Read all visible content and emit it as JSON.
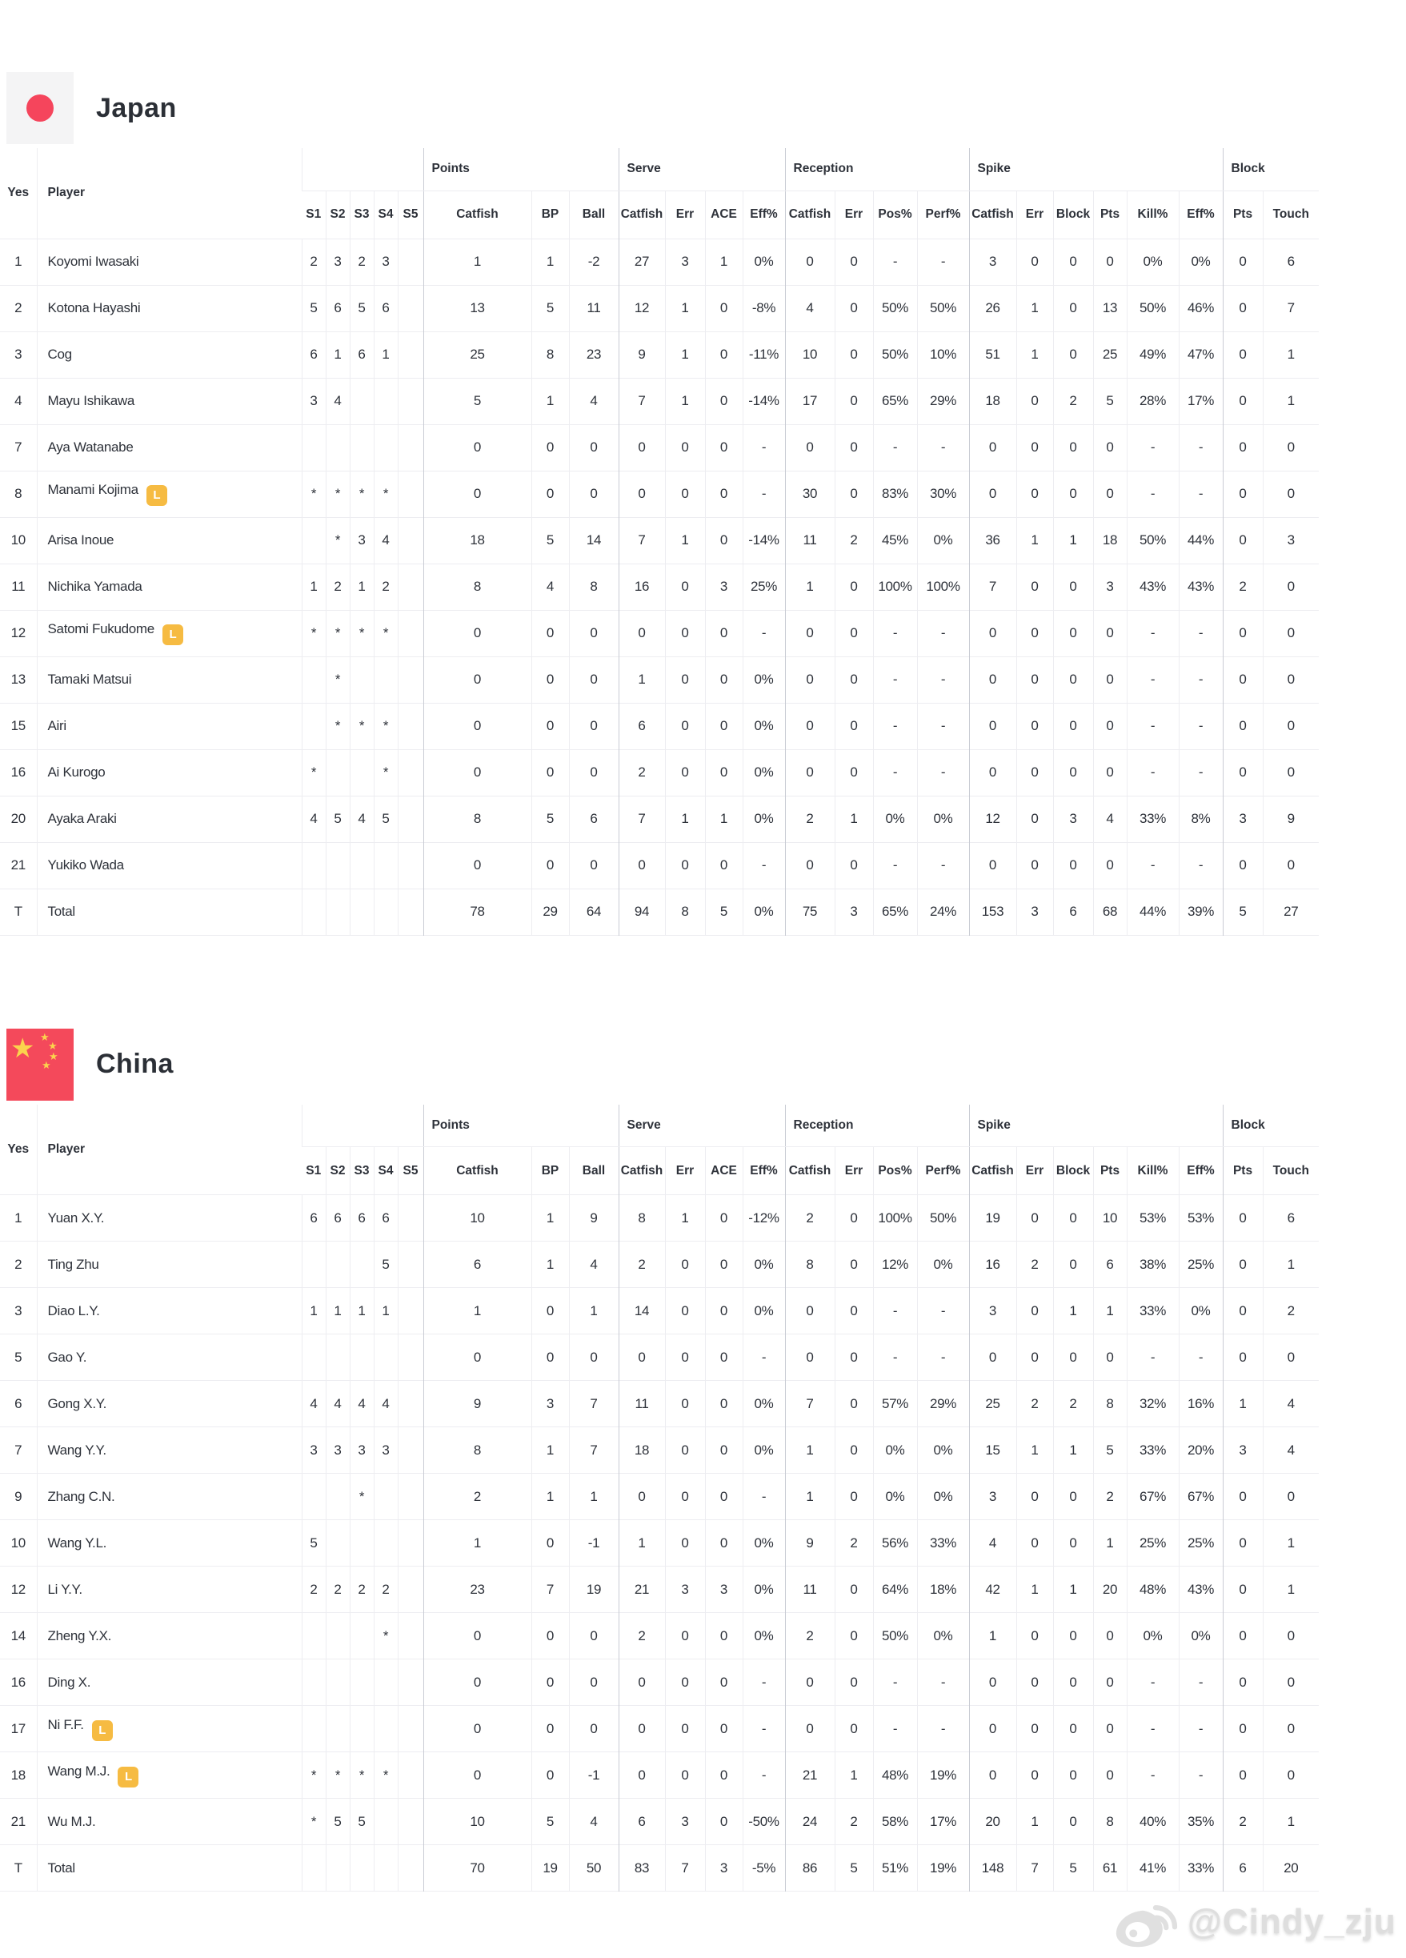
{
  "colors": {
    "libero_badge": "#F6BB42",
    "japan_flag_circle": "#F5455C",
    "china_flag_bg": "#F4495B",
    "china_flag_star": "#FBD34D",
    "border_light": "#EDEDF1",
    "border_group": "#C9CCD4"
  },
  "badge": {
    "label": "L"
  },
  "columns": {
    "yes": "Yes",
    "player": "Player",
    "sets": [
      "S1",
      "S2",
      "S3",
      "S4",
      "S5"
    ],
    "groups": [
      {
        "label": "Points",
        "cols": [
          "Catfish",
          "BP",
          "Ball"
        ]
      },
      {
        "label": "Serve",
        "cols": [
          "Catfish",
          "Err",
          "ACE",
          "Eff%"
        ]
      },
      {
        "label": "Reception",
        "cols": [
          "Catfish",
          "Err",
          "Pos%",
          "Perf%"
        ]
      },
      {
        "label": "Spike",
        "cols": [
          "Catfish",
          "Err",
          "Block",
          "Pts",
          "Kill%",
          "Eff%"
        ]
      },
      {
        "label": "Block",
        "cols": [
          "Pts",
          "Touch"
        ]
      }
    ]
  },
  "teams": [
    {
      "name": "Japan",
      "flag": "japan",
      "rows": [
        {
          "no": "1",
          "player": "Koyomi Iwasaki",
          "libero": false,
          "sets": [
            "2",
            "3",
            "2",
            "3",
            ""
          ],
          "stats": [
            "1",
            "1",
            "-2",
            "27",
            "3",
            "1",
            "0%",
            "0",
            "0",
            "-",
            "-",
            "3",
            "0",
            "0",
            "0",
            "0%",
            "0%",
            "0",
            "6"
          ]
        },
        {
          "no": "2",
          "player": "Kotona Hayashi",
          "libero": false,
          "sets": [
            "5",
            "6",
            "5",
            "6",
            ""
          ],
          "stats": [
            "13",
            "5",
            "11",
            "12",
            "1",
            "0",
            "-8%",
            "4",
            "0",
            "50%",
            "50%",
            "26",
            "1",
            "0",
            "13",
            "50%",
            "46%",
            "0",
            "7"
          ]
        },
        {
          "no": "3",
          "player": "Cog",
          "libero": false,
          "sets": [
            "6",
            "1",
            "6",
            "1",
            ""
          ],
          "stats": [
            "25",
            "8",
            "23",
            "9",
            "1",
            "0",
            "-11%",
            "10",
            "0",
            "50%",
            "10%",
            "51",
            "1",
            "0",
            "25",
            "49%",
            "47%",
            "0",
            "1"
          ]
        },
        {
          "no": "4",
          "player": "Mayu Ishikawa",
          "libero": false,
          "sets": [
            "3",
            "4",
            "",
            "",
            ""
          ],
          "stats": [
            "5",
            "1",
            "4",
            "7",
            "1",
            "0",
            "-14%",
            "17",
            "0",
            "65%",
            "29%",
            "18",
            "0",
            "2",
            "5",
            "28%",
            "17%",
            "0",
            "1"
          ]
        },
        {
          "no": "7",
          "player": "Aya Watanabe",
          "libero": false,
          "sets": [
            "",
            "",
            "",
            "",
            ""
          ],
          "stats": [
            "0",
            "0",
            "0",
            "0",
            "0",
            "0",
            "-",
            "0",
            "0",
            "-",
            "-",
            "0",
            "0",
            "0",
            "0",
            "-",
            "-",
            "0",
            "0"
          ]
        },
        {
          "no": "8",
          "player": "Manami Kojima",
          "libero": true,
          "sets": [
            "*",
            "*",
            "*",
            "*",
            ""
          ],
          "stats": [
            "0",
            "0",
            "0",
            "0",
            "0",
            "0",
            "-",
            "30",
            "0",
            "83%",
            "30%",
            "0",
            "0",
            "0",
            "0",
            "-",
            "-",
            "0",
            "0"
          ]
        },
        {
          "no": "10",
          "player": "Arisa Inoue",
          "libero": false,
          "sets": [
            "",
            "*",
            "3",
            "4",
            ""
          ],
          "stats": [
            "18",
            "5",
            "14",
            "7",
            "1",
            "0",
            "-14%",
            "11",
            "2",
            "45%",
            "0%",
            "36",
            "1",
            "1",
            "18",
            "50%",
            "44%",
            "0",
            "3"
          ]
        },
        {
          "no": "11",
          "player": "Nichika Yamada",
          "libero": false,
          "sets": [
            "1",
            "2",
            "1",
            "2",
            ""
          ],
          "stats": [
            "8",
            "4",
            "8",
            "16",
            "0",
            "3",
            "25%",
            "1",
            "0",
            "100%",
            "100%",
            "7",
            "0",
            "0",
            "3",
            "43%",
            "43%",
            "2",
            "0"
          ]
        },
        {
          "no": "12",
          "player": "Satomi Fukudome",
          "libero": true,
          "sets": [
            "*",
            "*",
            "*",
            "*",
            ""
          ],
          "stats": [
            "0",
            "0",
            "0",
            "0",
            "0",
            "0",
            "-",
            "0",
            "0",
            "-",
            "-",
            "0",
            "0",
            "0",
            "0",
            "-",
            "-",
            "0",
            "0"
          ]
        },
        {
          "no": "13",
          "player": "Tamaki Matsui",
          "libero": false,
          "sets": [
            "",
            "*",
            "",
            "",
            ""
          ],
          "stats": [
            "0",
            "0",
            "0",
            "1",
            "0",
            "0",
            "0%",
            "0",
            "0",
            "-",
            "-",
            "0",
            "0",
            "0",
            "0",
            "-",
            "-",
            "0",
            "0"
          ]
        },
        {
          "no": "15",
          "player": "Airi",
          "libero": false,
          "sets": [
            "",
            "*",
            "*",
            "*",
            ""
          ],
          "stats": [
            "0",
            "0",
            "0",
            "6",
            "0",
            "0",
            "0%",
            "0",
            "0",
            "-",
            "-",
            "0",
            "0",
            "0",
            "0",
            "-",
            "-",
            "0",
            "0"
          ]
        },
        {
          "no": "16",
          "player": "Ai Kurogo",
          "libero": false,
          "sets": [
            "*",
            "",
            "",
            "*",
            ""
          ],
          "stats": [
            "0",
            "0",
            "0",
            "2",
            "0",
            "0",
            "0%",
            "0",
            "0",
            "-",
            "-",
            "0",
            "0",
            "0",
            "0",
            "-",
            "-",
            "0",
            "0"
          ]
        },
        {
          "no": "20",
          "player": "Ayaka Araki",
          "libero": false,
          "sets": [
            "4",
            "5",
            "4",
            "5",
            ""
          ],
          "stats": [
            "8",
            "5",
            "6",
            "7",
            "1",
            "1",
            "0%",
            "2",
            "1",
            "0%",
            "0%",
            "12",
            "0",
            "3",
            "4",
            "33%",
            "8%",
            "3",
            "9"
          ]
        },
        {
          "no": "21",
          "player": "Yukiko Wada",
          "libero": false,
          "sets": [
            "",
            "",
            "",
            "",
            ""
          ],
          "stats": [
            "0",
            "0",
            "0",
            "0",
            "0",
            "0",
            "-",
            "0",
            "0",
            "-",
            "-",
            "0",
            "0",
            "0",
            "0",
            "-",
            "-",
            "0",
            "0"
          ]
        }
      ],
      "total": {
        "no": "T",
        "player": "Total",
        "sets": [
          "",
          "",
          "",
          "",
          ""
        ],
        "stats": [
          "78",
          "29",
          "64",
          "94",
          "8",
          "5",
          "0%",
          "75",
          "3",
          "65%",
          "24%",
          "153",
          "3",
          "6",
          "68",
          "44%",
          "39%",
          "5",
          "27"
        ]
      }
    },
    {
      "name": "China",
      "flag": "china",
      "rows": [
        {
          "no": "1",
          "player": "Yuan X.Y.",
          "libero": false,
          "sets": [
            "6",
            "6",
            "6",
            "6",
            ""
          ],
          "stats": [
            "10",
            "1",
            "9",
            "8",
            "1",
            "0",
            "-12%",
            "2",
            "0",
            "100%",
            "50%",
            "19",
            "0",
            "0",
            "10",
            "53%",
            "53%",
            "0",
            "6"
          ]
        },
        {
          "no": "2",
          "player": "Ting Zhu",
          "libero": false,
          "sets": [
            "",
            "",
            "",
            "5",
            ""
          ],
          "stats": [
            "6",
            "1",
            "4",
            "2",
            "0",
            "0",
            "0%",
            "8",
            "0",
            "12%",
            "0%",
            "16",
            "2",
            "0",
            "6",
            "38%",
            "25%",
            "0",
            "1"
          ]
        },
        {
          "no": "3",
          "player": "Diao L.Y.",
          "libero": false,
          "sets": [
            "1",
            "1",
            "1",
            "1",
            ""
          ],
          "stats": [
            "1",
            "0",
            "1",
            "14",
            "0",
            "0",
            "0%",
            "0",
            "0",
            "-",
            "-",
            "3",
            "0",
            "1",
            "1",
            "33%",
            "0%",
            "0",
            "2"
          ]
        },
        {
          "no": "5",
          "player": "Gao Y.",
          "libero": false,
          "sets": [
            "",
            "",
            "",
            "",
            ""
          ],
          "stats": [
            "0",
            "0",
            "0",
            "0",
            "0",
            "0",
            "-",
            "0",
            "0",
            "-",
            "-",
            "0",
            "0",
            "0",
            "0",
            "-",
            "-",
            "0",
            "0"
          ]
        },
        {
          "no": "6",
          "player": "Gong X.Y.",
          "libero": false,
          "sets": [
            "4",
            "4",
            "4",
            "4",
            ""
          ],
          "stats": [
            "9",
            "3",
            "7",
            "11",
            "0",
            "0",
            "0%",
            "7",
            "0",
            "57%",
            "29%",
            "25",
            "2",
            "2",
            "8",
            "32%",
            "16%",
            "1",
            "4"
          ]
        },
        {
          "no": "7",
          "player": "Wang Y.Y.",
          "libero": false,
          "sets": [
            "3",
            "3",
            "3",
            "3",
            ""
          ],
          "stats": [
            "8",
            "1",
            "7",
            "18",
            "0",
            "0",
            "0%",
            "1",
            "0",
            "0%",
            "0%",
            "15",
            "1",
            "1",
            "5",
            "33%",
            "20%",
            "3",
            "4"
          ]
        },
        {
          "no": "9",
          "player": "Zhang C.N.",
          "libero": false,
          "sets": [
            "",
            "",
            "*",
            "",
            ""
          ],
          "stats": [
            "2",
            "1",
            "1",
            "0",
            "0",
            "0",
            "-",
            "1",
            "0",
            "0%",
            "0%",
            "3",
            "0",
            "0",
            "2",
            "67%",
            "67%",
            "0",
            "0"
          ]
        },
        {
          "no": "10",
          "player": "Wang Y.L.",
          "libero": false,
          "sets": [
            "5",
            "",
            "",
            "",
            ""
          ],
          "stats": [
            "1",
            "0",
            "-1",
            "1",
            "0",
            "0",
            "0%",
            "9",
            "2",
            "56%",
            "33%",
            "4",
            "0",
            "0",
            "1",
            "25%",
            "25%",
            "0",
            "1"
          ]
        },
        {
          "no": "12",
          "player": "Li Y.Y.",
          "libero": false,
          "sets": [
            "2",
            "2",
            "2",
            "2",
            ""
          ],
          "stats": [
            "23",
            "7",
            "19",
            "21",
            "3",
            "3",
            "0%",
            "11",
            "0",
            "64%",
            "18%",
            "42",
            "1",
            "1",
            "20",
            "48%",
            "43%",
            "0",
            "1"
          ]
        },
        {
          "no": "14",
          "player": "Zheng Y.X.",
          "libero": false,
          "sets": [
            "",
            "",
            "",
            "*",
            ""
          ],
          "stats": [
            "0",
            "0",
            "0",
            "2",
            "0",
            "0",
            "0%",
            "2",
            "0",
            "50%",
            "0%",
            "1",
            "0",
            "0",
            "0",
            "0%",
            "0%",
            "0",
            "0"
          ]
        },
        {
          "no": "16",
          "player": "Ding X.",
          "libero": false,
          "sets": [
            "",
            "",
            "",
            "",
            ""
          ],
          "stats": [
            "0",
            "0",
            "0",
            "0",
            "0",
            "0",
            "-",
            "0",
            "0",
            "-",
            "-",
            "0",
            "0",
            "0",
            "0",
            "-",
            "-",
            "0",
            "0"
          ]
        },
        {
          "no": "17",
          "player": "Ni F.F.",
          "libero": true,
          "sets": [
            "",
            "",
            "",
            "",
            ""
          ],
          "stats": [
            "0",
            "0",
            "0",
            "0",
            "0",
            "0",
            "-",
            "0",
            "0",
            "-",
            "-",
            "0",
            "0",
            "0",
            "0",
            "-",
            "-",
            "0",
            "0"
          ]
        },
        {
          "no": "18",
          "player": "Wang M.J.",
          "libero": true,
          "sets": [
            "*",
            "*",
            "*",
            "*",
            ""
          ],
          "stats": [
            "0",
            "0",
            "-1",
            "0",
            "0",
            "0",
            "-",
            "21",
            "1",
            "48%",
            "19%",
            "0",
            "0",
            "0",
            "0",
            "-",
            "-",
            "0",
            "0"
          ]
        },
        {
          "no": "21",
          "player": "Wu M.J.",
          "libero": false,
          "sets": [
            "*",
            "5",
            "5",
            "",
            ""
          ],
          "stats": [
            "10",
            "5",
            "4",
            "6",
            "3",
            "0",
            "-50%",
            "24",
            "2",
            "58%",
            "17%",
            "20",
            "1",
            "0",
            "8",
            "40%",
            "35%",
            "2",
            "1"
          ]
        }
      ],
      "total": {
        "no": "T",
        "player": "Total",
        "sets": [
          "",
          "",
          "",
          "",
          ""
        ],
        "stats": [
          "70",
          "19",
          "50",
          "83",
          "7",
          "3",
          "-5%",
          "86",
          "5",
          "51%",
          "19%",
          "148",
          "7",
          "5",
          "61",
          "41%",
          "33%",
          "6",
          "20"
        ]
      }
    }
  ],
  "watermark": {
    "handle": "@Cindy_zju"
  }
}
